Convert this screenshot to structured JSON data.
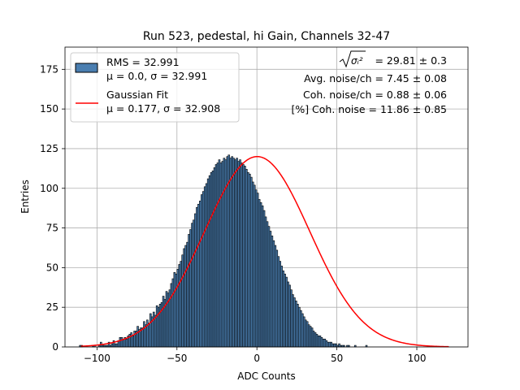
{
  "chart_data": {
    "type": "bar",
    "title": "Run 523, pedestal, hi Gain, Channels 32-47",
    "xlabel": "ADC Counts",
    "ylabel": "Entries",
    "xlim": [
      -120,
      132
    ],
    "ylim": [
      0,
      189
    ],
    "xticks": [
      -100,
      -50,
      0,
      50,
      100
    ],
    "xtick_labels": [
      "−100",
      "−50",
      "0",
      "50",
      "100"
    ],
    "yticks": [
      0,
      25,
      50,
      75,
      100,
      125,
      150,
      175
    ],
    "ytick_labels": [
      "0",
      "25",
      "50",
      "75",
      "100",
      "125",
      "150",
      "175"
    ],
    "grid": true,
    "legend_position": "top-left",
    "colors": {
      "bar_fill": "#4a7eb0",
      "bar_edge": "#000000",
      "fit_line": "#ff0000",
      "grid": "#b0b0b0"
    },
    "legend": [
      {
        "line1": "RMS = 32.991",
        "line2": "μ = 0.0, σ = 32.991",
        "marker": "bar"
      },
      {
        "line1": "Gaussian Fit",
        "line2": "μ = 0.177, σ = 32.908",
        "marker": "line"
      }
    ],
    "annotations": [
      {
        "radical": "σᵢ²",
        "text": "= 29.81 ± 0.3"
      },
      {
        "text": "Avg. noise/ch = 7.45 ± 0.08"
      },
      {
        "text": "Coh. noise/ch = 0.88 ± 0.06"
      },
      {
        "text": "[%] Coh. noise = 11.86 ± 0.85"
      }
    ],
    "histogram": {
      "bin_start": -111,
      "bin_width": 1,
      "counts": [
        1,
        1,
        0,
        0,
        0,
        0,
        0,
        0,
        1,
        1,
        0,
        0,
        1,
        3,
        1,
        1,
        1,
        1,
        3,
        1,
        2,
        4,
        2,
        2,
        4,
        6,
        6,
        5,
        6,
        5,
        7,
        8,
        9,
        7,
        10,
        10,
        13,
        11,
        12,
        12,
        16,
        14,
        17,
        15,
        21,
        19,
        22,
        20,
        26,
        25,
        27,
        28,
        32,
        30,
        35,
        34,
        36,
        40,
        43,
        47,
        46,
        49,
        52,
        54,
        58,
        62,
        64,
        66,
        71,
        74,
        78,
        80,
        84,
        88,
        90,
        92,
        96,
        98,
        101,
        103,
        106,
        108,
        110,
        111,
        113,
        115,
        116,
        118,
        116,
        117,
        119,
        118,
        120,
        121,
        119,
        120,
        119,
        118,
        119,
        117,
        118,
        116,
        115,
        114,
        112,
        110,
        109,
        107,
        104,
        102,
        99,
        97,
        93,
        91,
        89,
        86,
        82,
        79,
        76,
        73,
        70,
        67,
        64,
        61,
        57,
        54,
        51,
        48,
        46,
        44,
        41,
        39,
        36,
        33,
        31,
        29,
        27,
        25,
        23,
        21,
        19,
        17,
        16,
        14,
        13,
        12,
        10,
        9,
        8,
        7,
        7,
        6,
        5,
        5,
        4,
        3,
        3,
        3,
        2,
        2,
        2,
        1,
        2,
        1,
        1,
        1,
        0,
        1,
        1,
        0,
        0,
        0,
        1,
        0,
        0,
        0,
        0,
        0,
        0,
        1,
        0,
        0,
        0,
        0,
        0,
        0,
        0,
        0,
        0,
        0,
        0,
        0,
        0,
        0,
        0,
        0,
        0,
        0,
        0,
        0,
        0,
        0,
        0,
        0,
        0,
        0,
        0,
        0,
        0,
        0,
        0,
        0,
        0,
        0,
        0,
        0,
        0,
        0,
        0,
        0,
        0,
        0,
        0,
        0,
        0,
        0,
        0,
        0,
        0,
        0,
        0
      ]
    },
    "fit": {
      "mu": 0.177,
      "sigma": 32.908,
      "amplitude": 120
    }
  }
}
